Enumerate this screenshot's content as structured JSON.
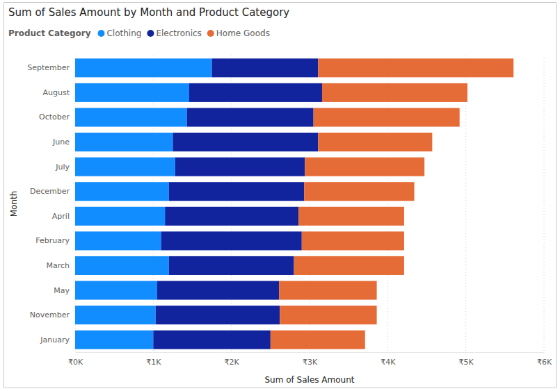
{
  "chart_data": {
    "type": "bar",
    "orientation": "horizontal",
    "stacked": true,
    "title": "Sum of Sales Amount by Month and Product Category",
    "legend_title": "Product Category",
    "legend": "top-left",
    "x_label": "Sum of Sales Amount",
    "y_label": "Month",
    "grid": true,
    "categories": [
      "September",
      "August",
      "October",
      "June",
      "July",
      "December",
      "April",
      "February",
      "March",
      "May",
      "November",
      "January"
    ],
    "series": [
      {
        "name": "Clothing",
        "color": "#118DFF",
        "values": [
          1750,
          1460,
          1430,
          1250,
          1280,
          1200,
          1150,
          1100,
          1200,
          1050,
          1030,
          1000
        ]
      },
      {
        "name": "Electronics",
        "color": "#12239E",
        "values": [
          1360,
          1700,
          1620,
          1860,
          1660,
          1730,
          1710,
          1800,
          1600,
          1560,
          1590,
          1500
        ]
      },
      {
        "name": "Home Goods",
        "color": "#E66C37",
        "values": [
          2500,
          1860,
          1870,
          1460,
          1530,
          1410,
          1350,
          1310,
          1410,
          1250,
          1240,
          1210
        ]
      }
    ],
    "xlim": [
      0,
      6000
    ],
    "xticks": [
      {
        "value": 0,
        "label": "₹0K"
      },
      {
        "value": 1000,
        "label": "₹1K"
      },
      {
        "value": 2000,
        "label": "₹2K"
      },
      {
        "value": 3000,
        "label": "₹3K"
      },
      {
        "value": 4000,
        "label": "₹4K"
      },
      {
        "value": 5000,
        "label": "₹5K"
      },
      {
        "value": 6000,
        "label": "₹6K"
      }
    ]
  }
}
